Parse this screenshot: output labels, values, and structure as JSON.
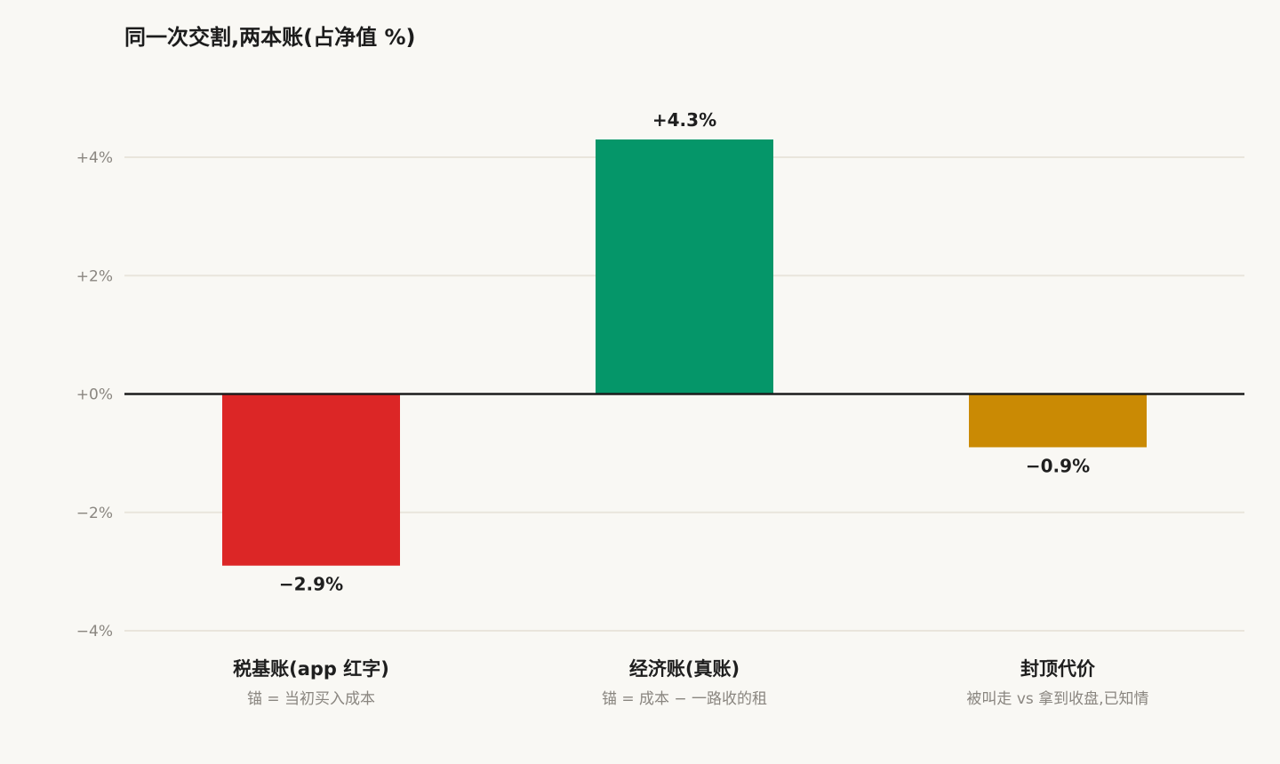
{
  "chart_data": {
    "type": "bar",
    "title": "同一次交割,两本账(占净值 %)",
    "categories": [
      "税基账(app 红字)",
      "经济账(真账)",
      "封顶代价"
    ],
    "sublabels": [
      "锚 = 当初买入成本",
      "锚 = 成本 − 一路收的租",
      "被叫走 vs 拿到收盘,已知情"
    ],
    "values": [
      -2.9,
      4.3,
      -0.9
    ],
    "value_labels": [
      "−2.9%",
      "+4.3%",
      "−0.9%"
    ],
    "colors": [
      "#dc2626",
      "#059669",
      "#ca8a04"
    ],
    "ylim": [
      -4,
      4
    ],
    "yticks": [
      -4,
      -2,
      0,
      2,
      4
    ],
    "ytick_labels": [
      "−4%",
      "−2%",
      "+0%",
      "+2%",
      "+4%"
    ],
    "xlabel": "",
    "ylabel": "",
    "grid": true,
    "legend": "none"
  }
}
